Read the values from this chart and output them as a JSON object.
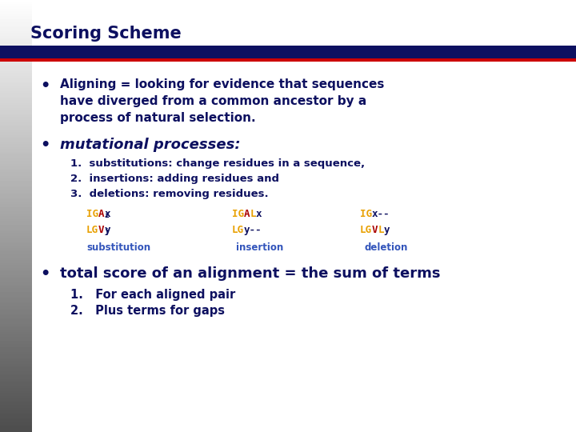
{
  "title": "Scoring Scheme",
  "title_color": "#1a1a6e",
  "bg_color": "#ffffff",
  "bar_color": "#0d1060",
  "red_line_color": "#cc0000",
  "bullet1_line1": "Aligning = looking for evidence that sequences",
  "bullet1_line2": "have diverged from a common ancestor by a",
  "bullet1_line3": "process of natural selection.",
  "bullet2": "mutational processes:",
  "sub1": "1.  substitutions: change residues in a sequence,",
  "sub2": "2.  insertions: adding residues and",
  "sub3": "3.  deletions: removing residues.",
  "bullet3_line1": "total score of an alignment = the sum of terms",
  "sub4": "1.   For each aligned pair",
  "sub5": "2.   Plus terms for gaps",
  "yellow": "#e8a000",
  "red": "#aa0000",
  "blue": "#3355bb",
  "dark": "#0d1060",
  "title_fs": 15,
  "bullet1_fs": 11,
  "bullet2_fs": 13,
  "sub_fs": 9.5,
  "code_fs": 9,
  "label_fs": 8.5,
  "bullet3_fs": 13,
  "sub3_fs": 10.5
}
